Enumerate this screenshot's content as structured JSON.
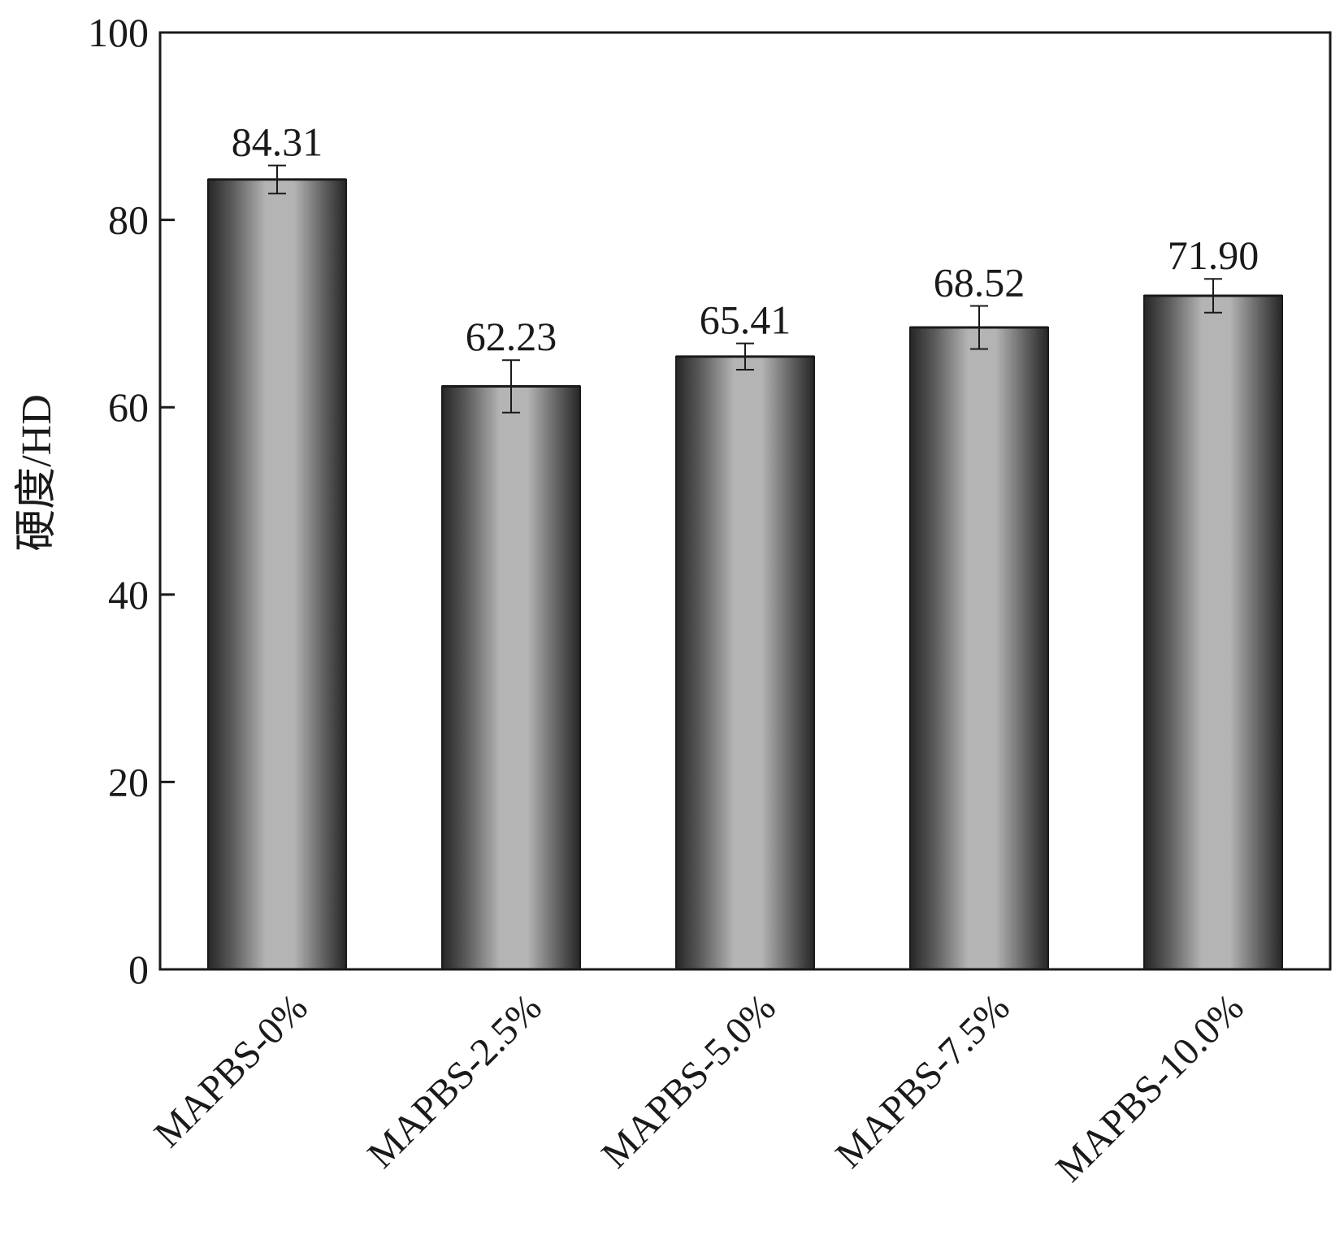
{
  "chart_data": {
    "type": "bar",
    "title": "",
    "xlabel": "",
    "ylabel": "硬度/HD",
    "categories": [
      "MAPBS-0%",
      "MAPBS-2.5%",
      "MAPBS-5.0%",
      "MAPBS-7.5%",
      "MAPBS-10.0%"
    ],
    "values": [
      84.31,
      62.23,
      65.41,
      68.52,
      71.9
    ],
    "data_labels": [
      "84.31",
      "62.23",
      "65.41",
      "68.52",
      "71.90"
    ],
    "error": [
      1.5,
      2.8,
      1.4,
      2.3,
      1.8
    ],
    "ylim": [
      0,
      100
    ],
    "yticks": [
      0,
      20,
      40,
      60,
      80,
      100
    ],
    "grid": false,
    "legend": "none",
    "colors": {
      "bar_edge": "#1a1a1a",
      "bar_dark": "#262626",
      "bar_mid": "#5c5c5c",
      "bar_light": "#b4b4b4",
      "axis": "#1a1a1a"
    }
  }
}
